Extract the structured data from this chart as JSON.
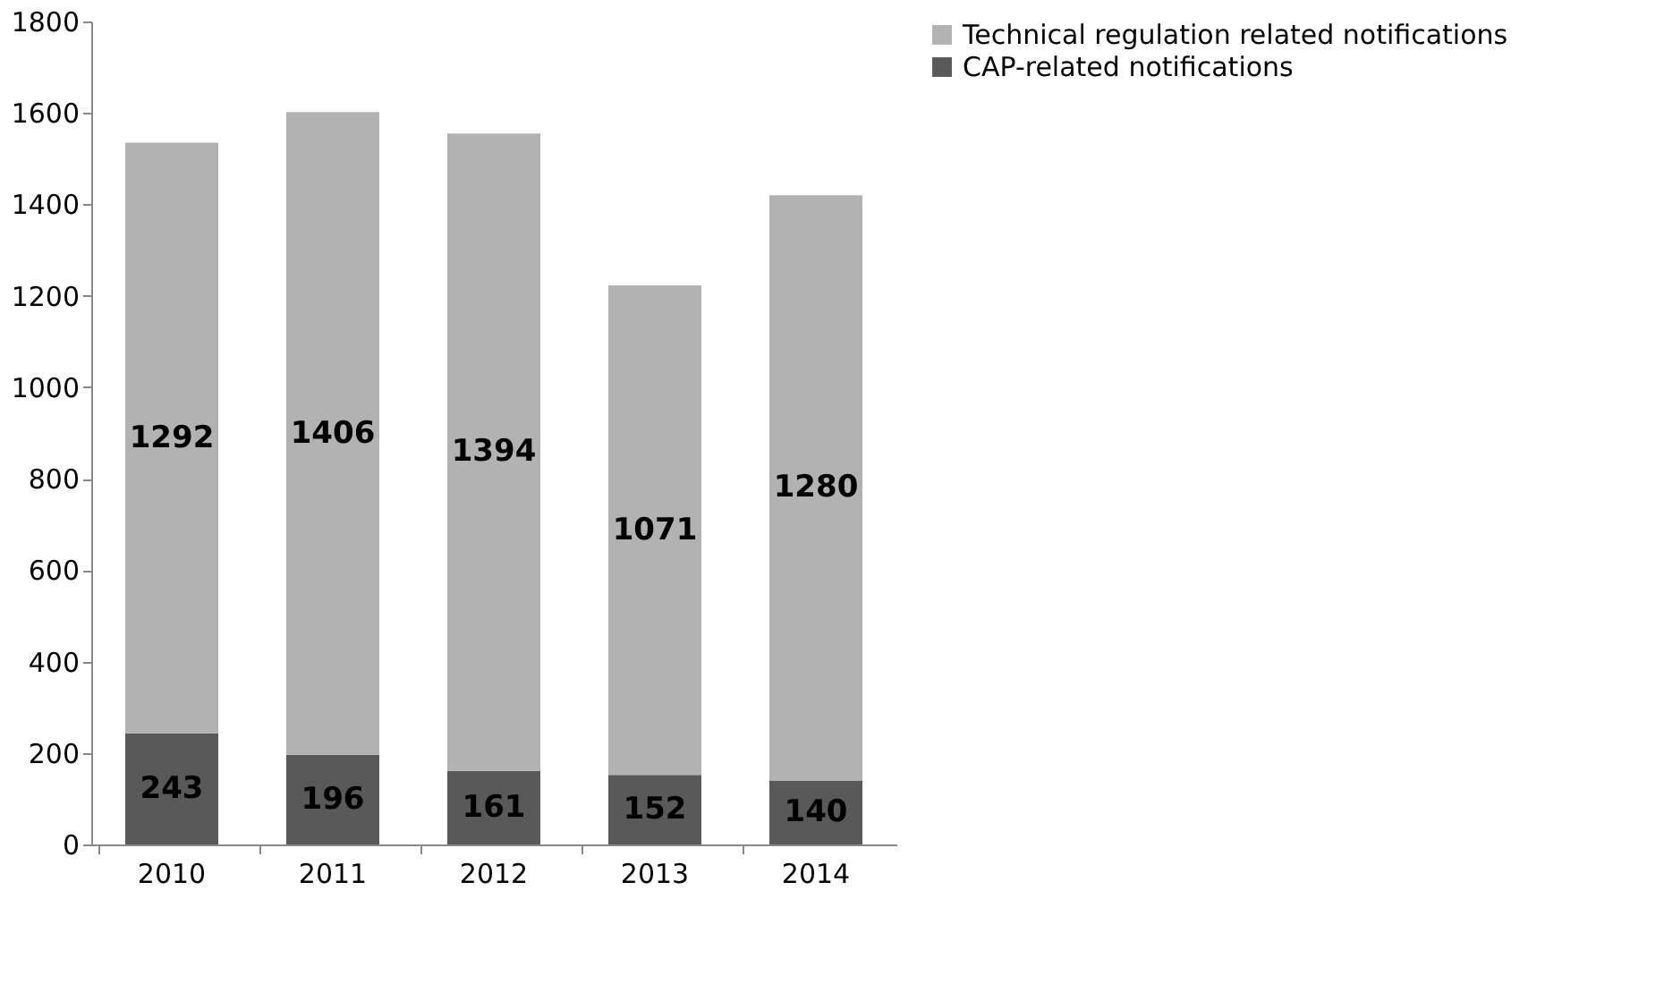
{
  "chart_data": {
    "type": "bar",
    "stacked": true,
    "categories": [
      "2010",
      "2011",
      "2012",
      "2013",
      "2014"
    ],
    "series": [
      {
        "name": "CAP-related notifications",
        "color": "#595959",
        "values": [
          243,
          196,
          161,
          152,
          140
        ]
      },
      {
        "name": "Technical regulation related notifications",
        "color": "#b2b2b2",
        "values": [
          1292,
          1406,
          1394,
          1071,
          1280
        ]
      }
    ],
    "ylim": [
      0,
      1800
    ],
    "yticks": [
      0,
      200,
      400,
      600,
      800,
      1000,
      1200,
      1400,
      1600,
      1800
    ],
    "grid": false,
    "legend": "right",
    "data_labels": true
  }
}
